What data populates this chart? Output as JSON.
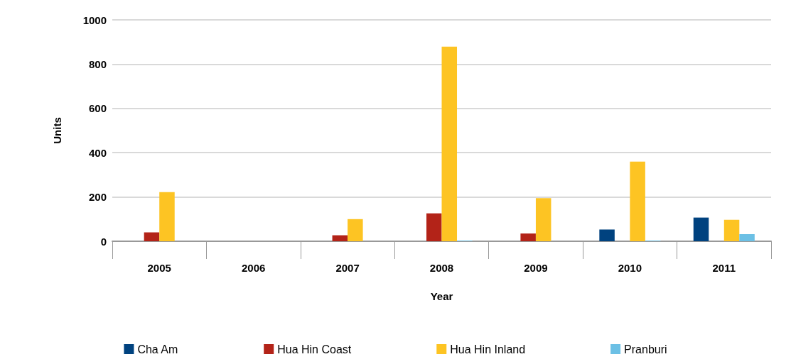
{
  "chart_data": {
    "type": "bar",
    "xlabel": "Year",
    "ylabel": "Units",
    "categories": [
      "2005",
      "2006",
      "2007",
      "2008",
      "2009",
      "2010",
      "2011"
    ],
    "series": [
      {
        "name": "Cha Am",
        "color": "#00427f",
        "values": [
          0,
          0,
          0,
          0,
          0,
          53,
          107
        ]
      },
      {
        "name": "Hua Hin Coast",
        "color": "#b32318",
        "values": [
          40,
          0,
          27,
          126,
          35,
          0,
          0
        ]
      },
      {
        "name": "Hua Hin Inland",
        "color": "#fdc423",
        "values": [
          222,
          0,
          100,
          879,
          195,
          360,
          97
        ]
      },
      {
        "name": "Pranburi",
        "color": "#6cc0e5",
        "values": [
          0,
          0,
          0,
          3,
          0,
          3,
          32
        ]
      }
    ],
    "ylim": [
      0,
      1000
    ],
    "yticks": [
      0,
      200,
      400,
      600,
      800,
      1000
    ],
    "grid": "y",
    "legend": "bottom"
  }
}
